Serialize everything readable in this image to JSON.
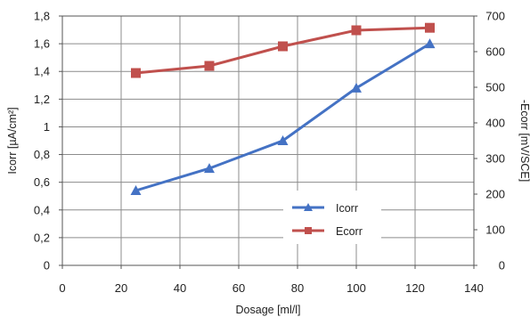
{
  "chart_data": {
    "type": "line",
    "title": "",
    "xlabel": "Dosage [ml/l]",
    "ylabel": "Icorr [µA/cm²]",
    "y2label": "-Ecorr [mV/SCE]",
    "xlim": [
      0,
      140
    ],
    "ylim": [
      0,
      1.8
    ],
    "y2lim": [
      0,
      700
    ],
    "x_ticks": [
      0,
      20,
      40,
      60,
      80,
      100,
      120,
      140
    ],
    "x_tick_labels": [
      "0",
      "20",
      "40",
      "60",
      "80",
      "100",
      "120",
      "140"
    ],
    "y_ticks": [
      0,
      0.2,
      0.4,
      0.6,
      0.8,
      1,
      1.2,
      1.4,
      1.6,
      1.8
    ],
    "y_tick_labels": [
      "0",
      "0,2",
      "0,4",
      "0,6",
      "0,8",
      "1",
      "1,2",
      "1,4",
      "1,6",
      "1,8"
    ],
    "y2_ticks": [
      0,
      100,
      200,
      300,
      400,
      500,
      600,
      700
    ],
    "y2_tick_labels": [
      "0",
      "100",
      "200",
      "300",
      "400",
      "500",
      "600",
      "700"
    ],
    "grid": true,
    "legend_position": "center-right",
    "series": [
      {
        "name": "Icorr",
        "axis": "left",
        "marker": "triangle",
        "color": "#4472C4",
        "x": [
          25,
          50,
          75,
          100,
          125
        ],
        "y": [
          0.54,
          0.7,
          0.9,
          1.28,
          1.6
        ]
      },
      {
        "name": "Ecorr",
        "axis": "right",
        "marker": "square",
        "color": "#C0504D",
        "x": [
          25,
          50,
          75,
          100,
          125
        ],
        "y": [
          540,
          560,
          615,
          660,
          667
        ]
      }
    ]
  }
}
